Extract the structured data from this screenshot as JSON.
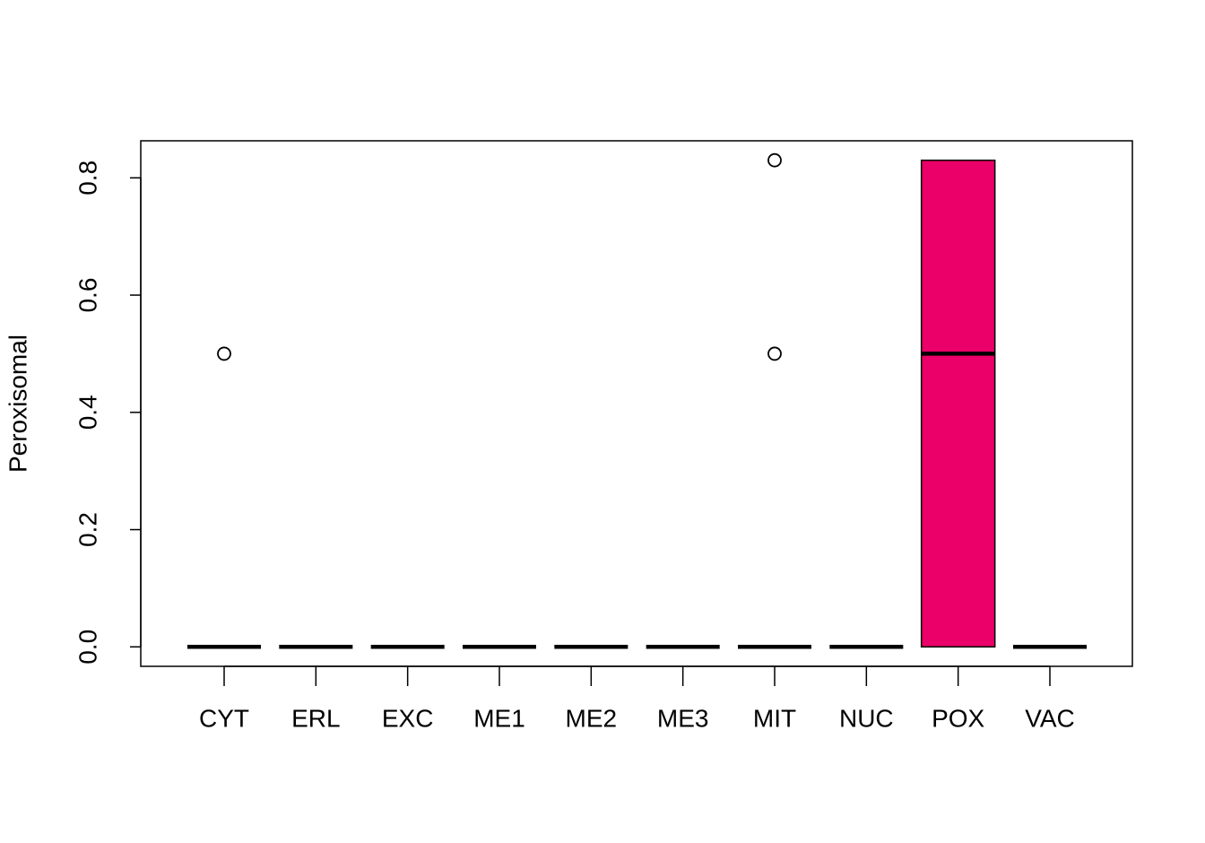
{
  "chart_data": {
    "type": "boxplot",
    "y_label": "Peroxisomal",
    "categories": [
      "CYT",
      "ERL",
      "EXC",
      "ME1",
      "ME2",
      "ME3",
      "MIT",
      "NUC",
      "POX",
      "VAC"
    ],
    "color": "#EA0068",
    "boxes": [
      {
        "min": 0,
        "q1": 0,
        "median": 0,
        "q3": 0,
        "max": 0,
        "outliers": [
          0.5
        ]
      },
      {
        "min": 0,
        "q1": 0,
        "median": 0,
        "q3": 0,
        "max": 0,
        "outliers": []
      },
      {
        "min": 0,
        "q1": 0,
        "median": 0,
        "q3": 0,
        "max": 0,
        "outliers": []
      },
      {
        "min": 0,
        "q1": 0,
        "median": 0,
        "q3": 0,
        "max": 0,
        "outliers": []
      },
      {
        "min": 0,
        "q1": 0,
        "median": 0,
        "q3": 0,
        "max": 0,
        "outliers": []
      },
      {
        "min": 0,
        "q1": 0,
        "median": 0,
        "q3": 0,
        "max": 0,
        "outliers": []
      },
      {
        "min": 0,
        "q1": 0,
        "median": 0,
        "q3": 0,
        "max": 0,
        "outliers": [
          0.83,
          0.5
        ]
      },
      {
        "min": 0,
        "q1": 0,
        "median": 0,
        "q3": 0,
        "max": 0,
        "outliers": []
      },
      {
        "min": 0,
        "q1": 0,
        "median": 0.5,
        "q3": 0.83,
        "max": 0.83,
        "outliers": []
      },
      {
        "min": 0,
        "q1": 0,
        "median": 0,
        "q3": 0,
        "max": 0,
        "outliers": []
      }
    ],
    "ylim": [
      -0.0332,
      0.8632
    ],
    "yticks": [
      {
        "value": 0,
        "label": "0.0"
      },
      0.2,
      0.4,
      0.6,
      0.8
    ]
  }
}
